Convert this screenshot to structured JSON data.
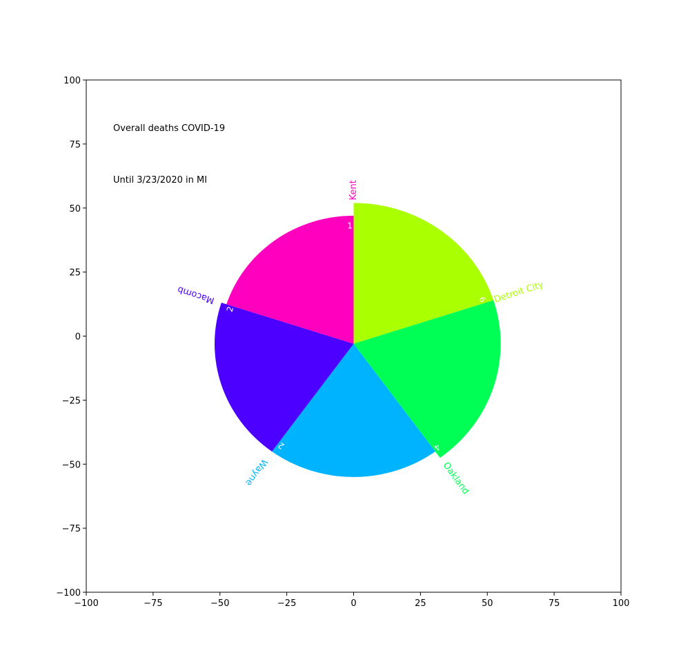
{
  "chart_data": {
    "type": "pie",
    "title": "",
    "xlabel": "",
    "ylabel": "",
    "xlim": [
      -100,
      100
    ],
    "ylim": [
      -100,
      100
    ],
    "xticks": [
      -100,
      -75,
      -50,
      -25,
      0,
      25,
      50,
      75,
      100
    ],
    "yticks": [
      -100,
      -75,
      -50,
      -25,
      0,
      25,
      50,
      75,
      100
    ],
    "xtick_labels": [
      "−100",
      "−75",
      "−50",
      "−25",
      "0",
      "25",
      "50",
      "75",
      "100"
    ],
    "ytick_labels": [
      "−100",
      "−75",
      "−50",
      "−25",
      "0",
      "25",
      "50",
      "75",
      "100"
    ],
    "grid": false,
    "annotations": [
      {
        "text": "Overall deaths COVID-19",
        "x": -90,
        "y": 80
      },
      {
        "text": "Until 3/23/2020 in MI",
        "x": -90,
        "y": 60
      }
    ],
    "slices": [
      {
        "label": "Detroit City",
        "value": 6,
        "color": "#aaff00",
        "radius": 55
      },
      {
        "label": "Oakland",
        "value": 4,
        "color": "#00ff55",
        "radius": 55
      },
      {
        "label": "Wayne",
        "value": 2,
        "color": "#00b3ff",
        "radius": 52
      },
      {
        "label": "Macomb",
        "value": 2,
        "color": "#4c00ff",
        "radius": 52
      },
      {
        "label": "Kent",
        "value": 1,
        "color": "#ff00bf",
        "radius": 50
      }
    ]
  }
}
